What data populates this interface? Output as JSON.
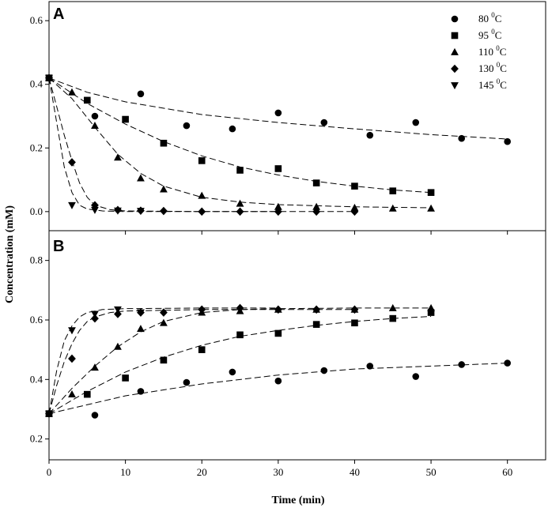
{
  "xlabel": "Time (min)",
  "ylabel": "Concentration (mM)",
  "legend": [
    {
      "temp": "80",
      "sup": "0",
      "unit": "C",
      "marker": "circle"
    },
    {
      "temp": "95",
      "sup": "0",
      "unit": "C",
      "marker": "square"
    },
    {
      "temp": "110",
      "sup": "0",
      "unit": "C",
      "marker": "triangle-up"
    },
    {
      "temp": "130",
      "sup": "0",
      "unit": "C",
      "marker": "diamond"
    },
    {
      "temp": "145",
      "sup": "0",
      "unit": "C",
      "marker": "triangle-down"
    }
  ],
  "chart_data": [
    {
      "type": "scatter",
      "panel": "A",
      "xlim": [
        0,
        65
      ],
      "ylim": [
        -0.06,
        0.66
      ],
      "xticks": [
        0,
        10,
        20,
        30,
        40,
        50,
        60
      ],
      "yticks": [
        0.0,
        0.2,
        0.4,
        0.6
      ],
      "ytick_labels": [
        "0.0",
        "0.2",
        "0.4",
        "0.6"
      ],
      "xticks_labeled": false,
      "fit_lines": "dashed",
      "series": [
        {
          "name": "80 0C",
          "marker": "circle",
          "x": [
            0,
            6,
            12,
            18,
            24,
            30,
            36,
            42,
            48,
            54,
            60
          ],
          "y": [
            0.42,
            0.3,
            0.37,
            0.27,
            0.26,
            0.31,
            0.28,
            0.24,
            0.28,
            0.23,
            0.22
          ],
          "fit": {
            "x": [
              0,
              5,
              10,
              20,
              30,
              40,
              50,
              60
            ],
            "y": [
              0.42,
              0.375,
              0.345,
              0.305,
              0.28,
              0.26,
              0.242,
              0.228
            ]
          }
        },
        {
          "name": "95 0C",
          "marker": "square",
          "x": [
            0,
            5,
            10,
            15,
            20,
            25,
            30,
            35,
            40,
            45,
            50
          ],
          "y": [
            0.42,
            0.35,
            0.29,
            0.215,
            0.16,
            0.13,
            0.135,
            0.09,
            0.08,
            0.065,
            0.06
          ],
          "fit": {
            "x": [
              0,
              5,
              10,
              15,
              20,
              25,
              30,
              35,
              40,
              45,
              50
            ],
            "y": [
              0.42,
              0.34,
              0.275,
              0.22,
              0.175,
              0.14,
              0.115,
              0.095,
              0.08,
              0.068,
              0.06
            ]
          }
        },
        {
          "name": "110 0C",
          "marker": "triangle-up",
          "x": [
            0,
            3,
            6,
            9,
            12,
            15,
            20,
            25,
            30,
            35,
            40,
            45,
            50
          ],
          "y": [
            0.42,
            0.375,
            0.27,
            0.17,
            0.105,
            0.07,
            0.05,
            0.025,
            0.015,
            0.015,
            0.012,
            0.01,
            0.01
          ],
          "fit": {
            "x": [
              0,
              3,
              6,
              9,
              12,
              15,
              20,
              25,
              30,
              40,
              50
            ],
            "y": [
              0.42,
              0.355,
              0.265,
              0.18,
              0.12,
              0.08,
              0.045,
              0.03,
              0.022,
              0.015,
              0.012
            ]
          }
        },
        {
          "name": "130 0C",
          "marker": "diamond",
          "x": [
            0,
            3,
            6,
            9,
            12,
            15,
            20,
            25,
            30,
            35,
            40
          ],
          "y": [
            0.42,
            0.155,
            0.02,
            0.005,
            0.003,
            0.002,
            0.0,
            0.0,
            0.0,
            0.0,
            0.0
          ],
          "fit": {
            "x": [
              0,
              1,
              2,
              3,
              4,
              5,
              6,
              8,
              10,
              20,
              40
            ],
            "y": [
              0.42,
              0.33,
              0.24,
              0.16,
              0.09,
              0.045,
              0.02,
              0.006,
              0.002,
              0.0,
              0.0
            ]
          }
        },
        {
          "name": "145 0C",
          "marker": "triangle-down",
          "x": [
            0,
            3,
            6,
            9,
            12
          ],
          "y": [
            0.42,
            0.02,
            0.005,
            0.003,
            0.002
          ],
          "fit": {
            "x": [
              0,
              1,
              2,
              3,
              4,
              5,
              7,
              10,
              20,
              30
            ],
            "y": [
              0.42,
              0.28,
              0.14,
              0.06,
              0.02,
              0.008,
              0.002,
              0.0,
              0.0,
              0.0
            ]
          }
        }
      ]
    },
    {
      "type": "scatter",
      "panel": "B",
      "xlim": [
        0,
        65
      ],
      "ylim": [
        0.13,
        0.9
      ],
      "xticks": [
        0,
        10,
        20,
        30,
        40,
        50,
        60
      ],
      "yticks": [
        0.2,
        0.4,
        0.6,
        0.8
      ],
      "ytick_labels": [
        "0.2",
        "0.4",
        "0.6",
        "0.8"
      ],
      "xticks_labeled": true,
      "fit_lines": "dashed",
      "series": [
        {
          "name": "80 0C",
          "marker": "circle",
          "x": [
            0,
            6,
            12,
            18,
            24,
            30,
            36,
            42,
            48,
            54,
            60
          ],
          "y": [
            0.285,
            0.28,
            0.36,
            0.39,
            0.425,
            0.395,
            0.43,
            0.445,
            0.41,
            0.45,
            0.455
          ],
          "fit": {
            "x": [
              0,
              10,
              20,
              30,
              40,
              50,
              60
            ],
            "y": [
              0.285,
              0.345,
              0.385,
              0.415,
              0.435,
              0.445,
              0.455
            ]
          }
        },
        {
          "name": "95 0C",
          "marker": "square",
          "x": [
            0,
            5,
            10,
            15,
            20,
            25,
            30,
            35,
            40,
            45,
            50
          ],
          "y": [
            0.285,
            0.35,
            0.405,
            0.465,
            0.5,
            0.55,
            0.555,
            0.585,
            0.59,
            0.605,
            0.625
          ],
          "fit": {
            "x": [
              0,
              5,
              10,
              15,
              20,
              25,
              30,
              35,
              40,
              45,
              50
            ],
            "y": [
              0.285,
              0.36,
              0.425,
              0.475,
              0.515,
              0.545,
              0.565,
              0.582,
              0.595,
              0.605,
              0.612
            ]
          }
        },
        {
          "name": "110 0C",
          "marker": "triangle-up",
          "x": [
            0,
            3,
            6,
            9,
            12,
            15,
            20,
            25,
            30,
            35,
            40,
            45,
            50
          ],
          "y": [
            0.285,
            0.35,
            0.44,
            0.51,
            0.57,
            0.59,
            0.625,
            0.63,
            0.635,
            0.635,
            0.635,
            0.64,
            0.64
          ],
          "fit": {
            "x": [
              0,
              3,
              6,
              9,
              12,
              15,
              20,
              25,
              30,
              40,
              50
            ],
            "y": [
              0.285,
              0.37,
              0.445,
              0.51,
              0.56,
              0.595,
              0.625,
              0.635,
              0.638,
              0.64,
              0.64
            ]
          }
        },
        {
          "name": "130 0C",
          "marker": "diamond",
          "x": [
            0,
            3,
            6,
            9,
            12,
            15,
            20,
            25,
            30,
            35,
            40
          ],
          "y": [
            0.285,
            0.47,
            0.605,
            0.62,
            0.625,
            0.625,
            0.635,
            0.64,
            0.635,
            0.635,
            0.635
          ],
          "fit": {
            "x": [
              0,
              1,
              2,
              3,
              4,
              5,
              6,
              8,
              10,
              20,
              40
            ],
            "y": [
              0.285,
              0.38,
              0.46,
              0.52,
              0.565,
              0.595,
              0.61,
              0.625,
              0.63,
              0.635,
              0.635
            ]
          }
        },
        {
          "name": "145 0C",
          "marker": "triangle-down",
          "x": [
            0,
            3,
            6,
            9,
            12
          ],
          "y": [
            0.285,
            0.565,
            0.62,
            0.635,
            0.625
          ],
          "fit": {
            "x": [
              0,
              1,
              2,
              3,
              4,
              5,
              7,
              10,
              20,
              30
            ],
            "y": [
              0.285,
              0.43,
              0.53,
              0.58,
              0.61,
              0.625,
              0.635,
              0.638,
              0.64,
              0.64
            ]
          }
        }
      ]
    }
  ]
}
